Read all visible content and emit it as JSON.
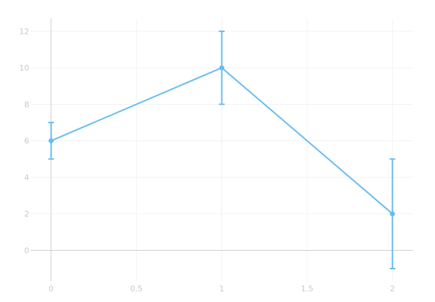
{
  "chart_data": {
    "type": "line",
    "title": "",
    "xlabel": "",
    "ylabel": "",
    "x": [
      0,
      1,
      2
    ],
    "series": [
      {
        "values": [
          6,
          10,
          2
        ],
        "error_plus": [
          1,
          2,
          3
        ],
        "error_minus": [
          1,
          2,
          3
        ],
        "color": "#64bdf0"
      }
    ],
    "xlim": [
      -0.12,
      2.12
    ],
    "ylim": [
      -1.7,
      12.7
    ],
    "xticks": [
      0,
      0.5,
      1,
      1.5,
      2
    ],
    "xtick_labels": [
      "0",
      "0.5",
      "1",
      "1.5",
      "2"
    ],
    "yticks": [
      0,
      2,
      4,
      6,
      8,
      10,
      12
    ],
    "ytick_labels": [
      "0",
      "2",
      "4",
      "6",
      "8",
      "10",
      "12"
    ],
    "grid": true,
    "markers": true,
    "legend": "none"
  }
}
